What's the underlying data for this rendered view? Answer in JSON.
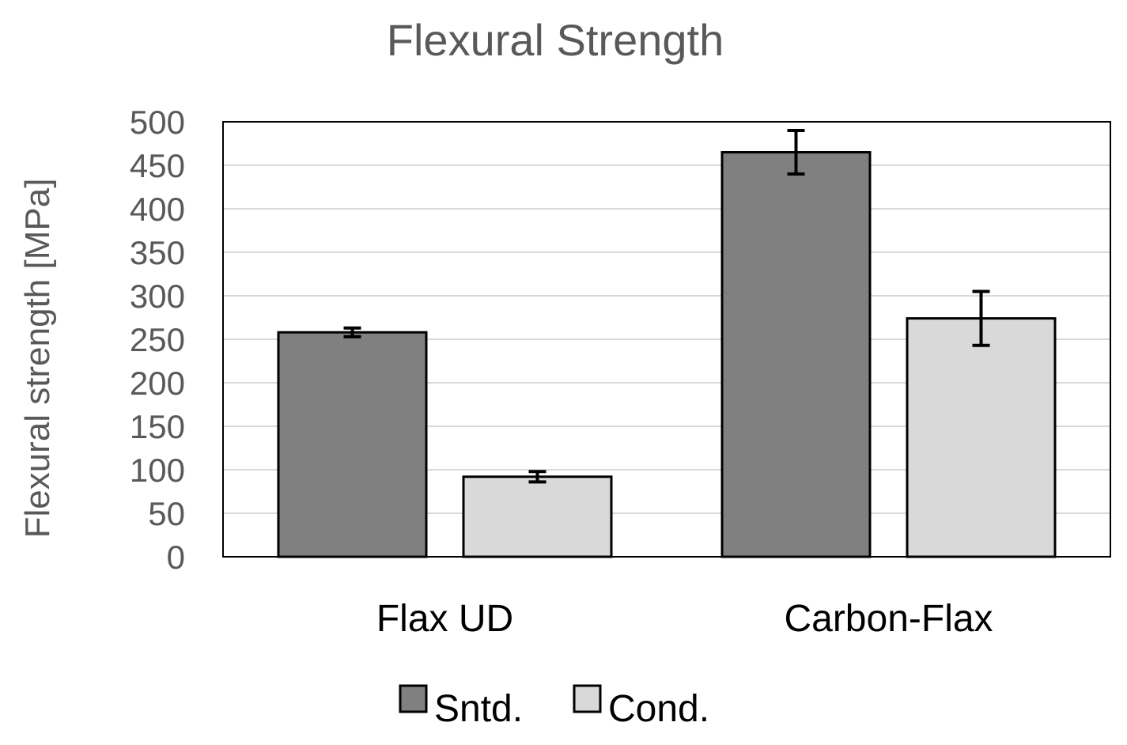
{
  "chart_data": {
    "type": "bar",
    "title": "Flexural Strength",
    "xlabel": "",
    "ylabel": "Flexural strength [MPa]",
    "categories": [
      "Flax UD",
      "Carbon-Flax"
    ],
    "ylim": [
      0,
      500
    ],
    "yticks": [
      0,
      50,
      100,
      150,
      200,
      250,
      300,
      350,
      400,
      450,
      500
    ],
    "grid": true,
    "legend_position": "bottom",
    "series": [
      {
        "name": "Sntd.",
        "color": "#808080",
        "values": [
          258,
          465
        ],
        "errors": [
          5,
          25
        ]
      },
      {
        "name": "Cond.",
        "color": "#d9d9d9",
        "values": [
          92,
          274
        ],
        "errors": [
          6,
          31
        ]
      }
    ]
  }
}
